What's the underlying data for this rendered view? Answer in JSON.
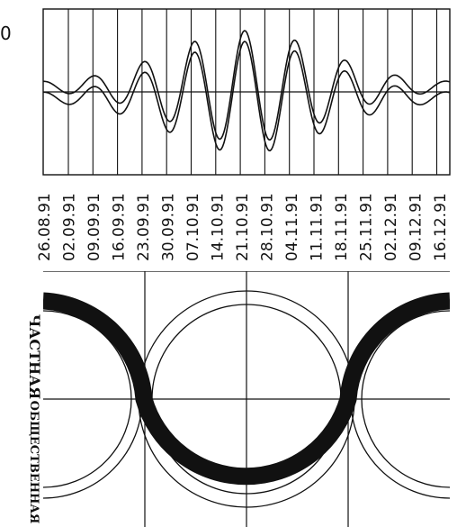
{
  "top_panel": {
    "corner_mark": "0",
    "dates": [
      "26.08.91",
      "02.09.91",
      "09.09.91",
      "16.09.91",
      "23.09.91",
      "30.09.91",
      "07.10.91",
      "14.10.91",
      "21.10.91",
      "28.10.91",
      "04.11.91",
      "11.11.91",
      "18.11.91",
      "25.11.91",
      "02.12.91",
      "09.12.91",
      "16.12.91"
    ]
  },
  "bottom_panel": {
    "label_upper": "ЧАСТНАЯ",
    "label_lower": "ОБЩЕСТВЕННАЯ"
  }
}
